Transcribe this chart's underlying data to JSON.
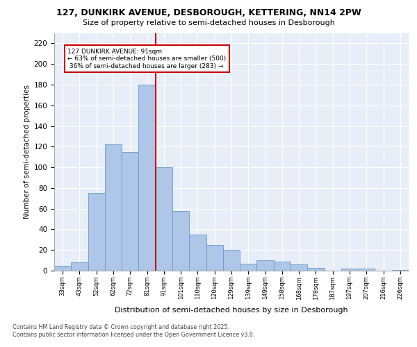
{
  "title_line1": "127, DUNKIRK AVENUE, DESBOROUGH, KETTERING, NN14 2PW",
  "title_line2": "Size of property relative to semi-detached houses in Desborough",
  "xlabel": "Distribution of semi-detached houses by size in Desborough",
  "ylabel": "Number of semi-detached properties",
  "categories": [
    "33sqm",
    "43sqm",
    "52sqm",
    "62sqm",
    "72sqm",
    "81sqm",
    "91sqm",
    "101sqm",
    "110sqm",
    "120sqm",
    "129sqm",
    "139sqm",
    "149sqm",
    "158sqm",
    "168sqm",
    "178sqm",
    "187sqm",
    "197sqm",
    "207sqm",
    "216sqm",
    "226sqm"
  ],
  "values": [
    5,
    8,
    75,
    122,
    115,
    180,
    100,
    58,
    35,
    25,
    20,
    7,
    10,
    9,
    6,
    3,
    0,
    2,
    2,
    0,
    1
  ],
  "bar_color": "#aec6e8",
  "bar_edge_color": "#6699cc",
  "highlight_index": 6,
  "highlight_line_color": "#cc0000",
  "annotation_text": "127 DUNKIRK AVENUE: 91sqm\n← 63% of semi-detached houses are smaller (500)\n 36% of semi-detached houses are larger (283) →",
  "annotation_box_color": "#ffffff",
  "annotation_box_edge": "#cc0000",
  "footer_text": "Contains HM Land Registry data © Crown copyright and database right 2025.\nContains public sector information licensed under the Open Government Licence v3.0.",
  "ylim": [
    0,
    230
  ],
  "yticks": [
    0,
    20,
    40,
    60,
    80,
    100,
    120,
    140,
    160,
    180,
    200,
    220
  ],
  "background_color": "#e8eef7",
  "fig_background": "#ffffff"
}
